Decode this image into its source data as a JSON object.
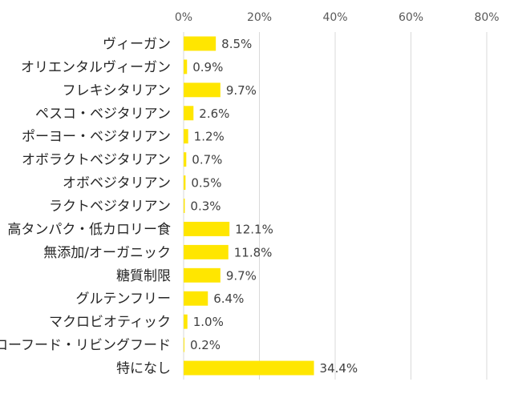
{
  "chart_data": {
    "type": "bar",
    "orientation": "horizontal",
    "categories": [
      "ヴィーガン",
      "オリエンタルヴィーガン",
      "フレキシタリアン",
      "ペスコ・ベジタリアン",
      "ポーヨー・ベジタリアン",
      "オボラクトベジタリアン",
      "オボベジタリアン",
      "ラクトベジタリアン",
      "高タンパク・低カロリー食",
      "無添加/オーガニック",
      "糖質制限",
      "グルテンフリー",
      "マクロビオティック",
      "ローフード・リビングフード",
      "特になし"
    ],
    "values": [
      8.5,
      0.9,
      9.7,
      2.6,
      1.2,
      0.7,
      0.5,
      0.3,
      12.1,
      11.8,
      9.7,
      6.4,
      1.0,
      0.2,
      34.4
    ],
    "value_labels": [
      "8.5%",
      "0.9%",
      "9.7%",
      "2.6%",
      "1.2%",
      "0.7%",
      "0.5%",
      "0.3%",
      "12.1%",
      "11.8%",
      "9.7%",
      "6.4%",
      "1.0%",
      "0.2%",
      "34.4%"
    ],
    "xlim": [
      0,
      80
    ],
    "x_ticks": [
      0,
      20,
      40,
      60,
      80
    ],
    "x_tick_labels": [
      "0%",
      "20%",
      "40%",
      "60%",
      "80%"
    ],
    "x_axis_position": "top",
    "grid": true,
    "bar_color": "#FFE600",
    "grid_color": "#D9D9D9",
    "title": "",
    "xlabel": "",
    "ylabel": ""
  }
}
